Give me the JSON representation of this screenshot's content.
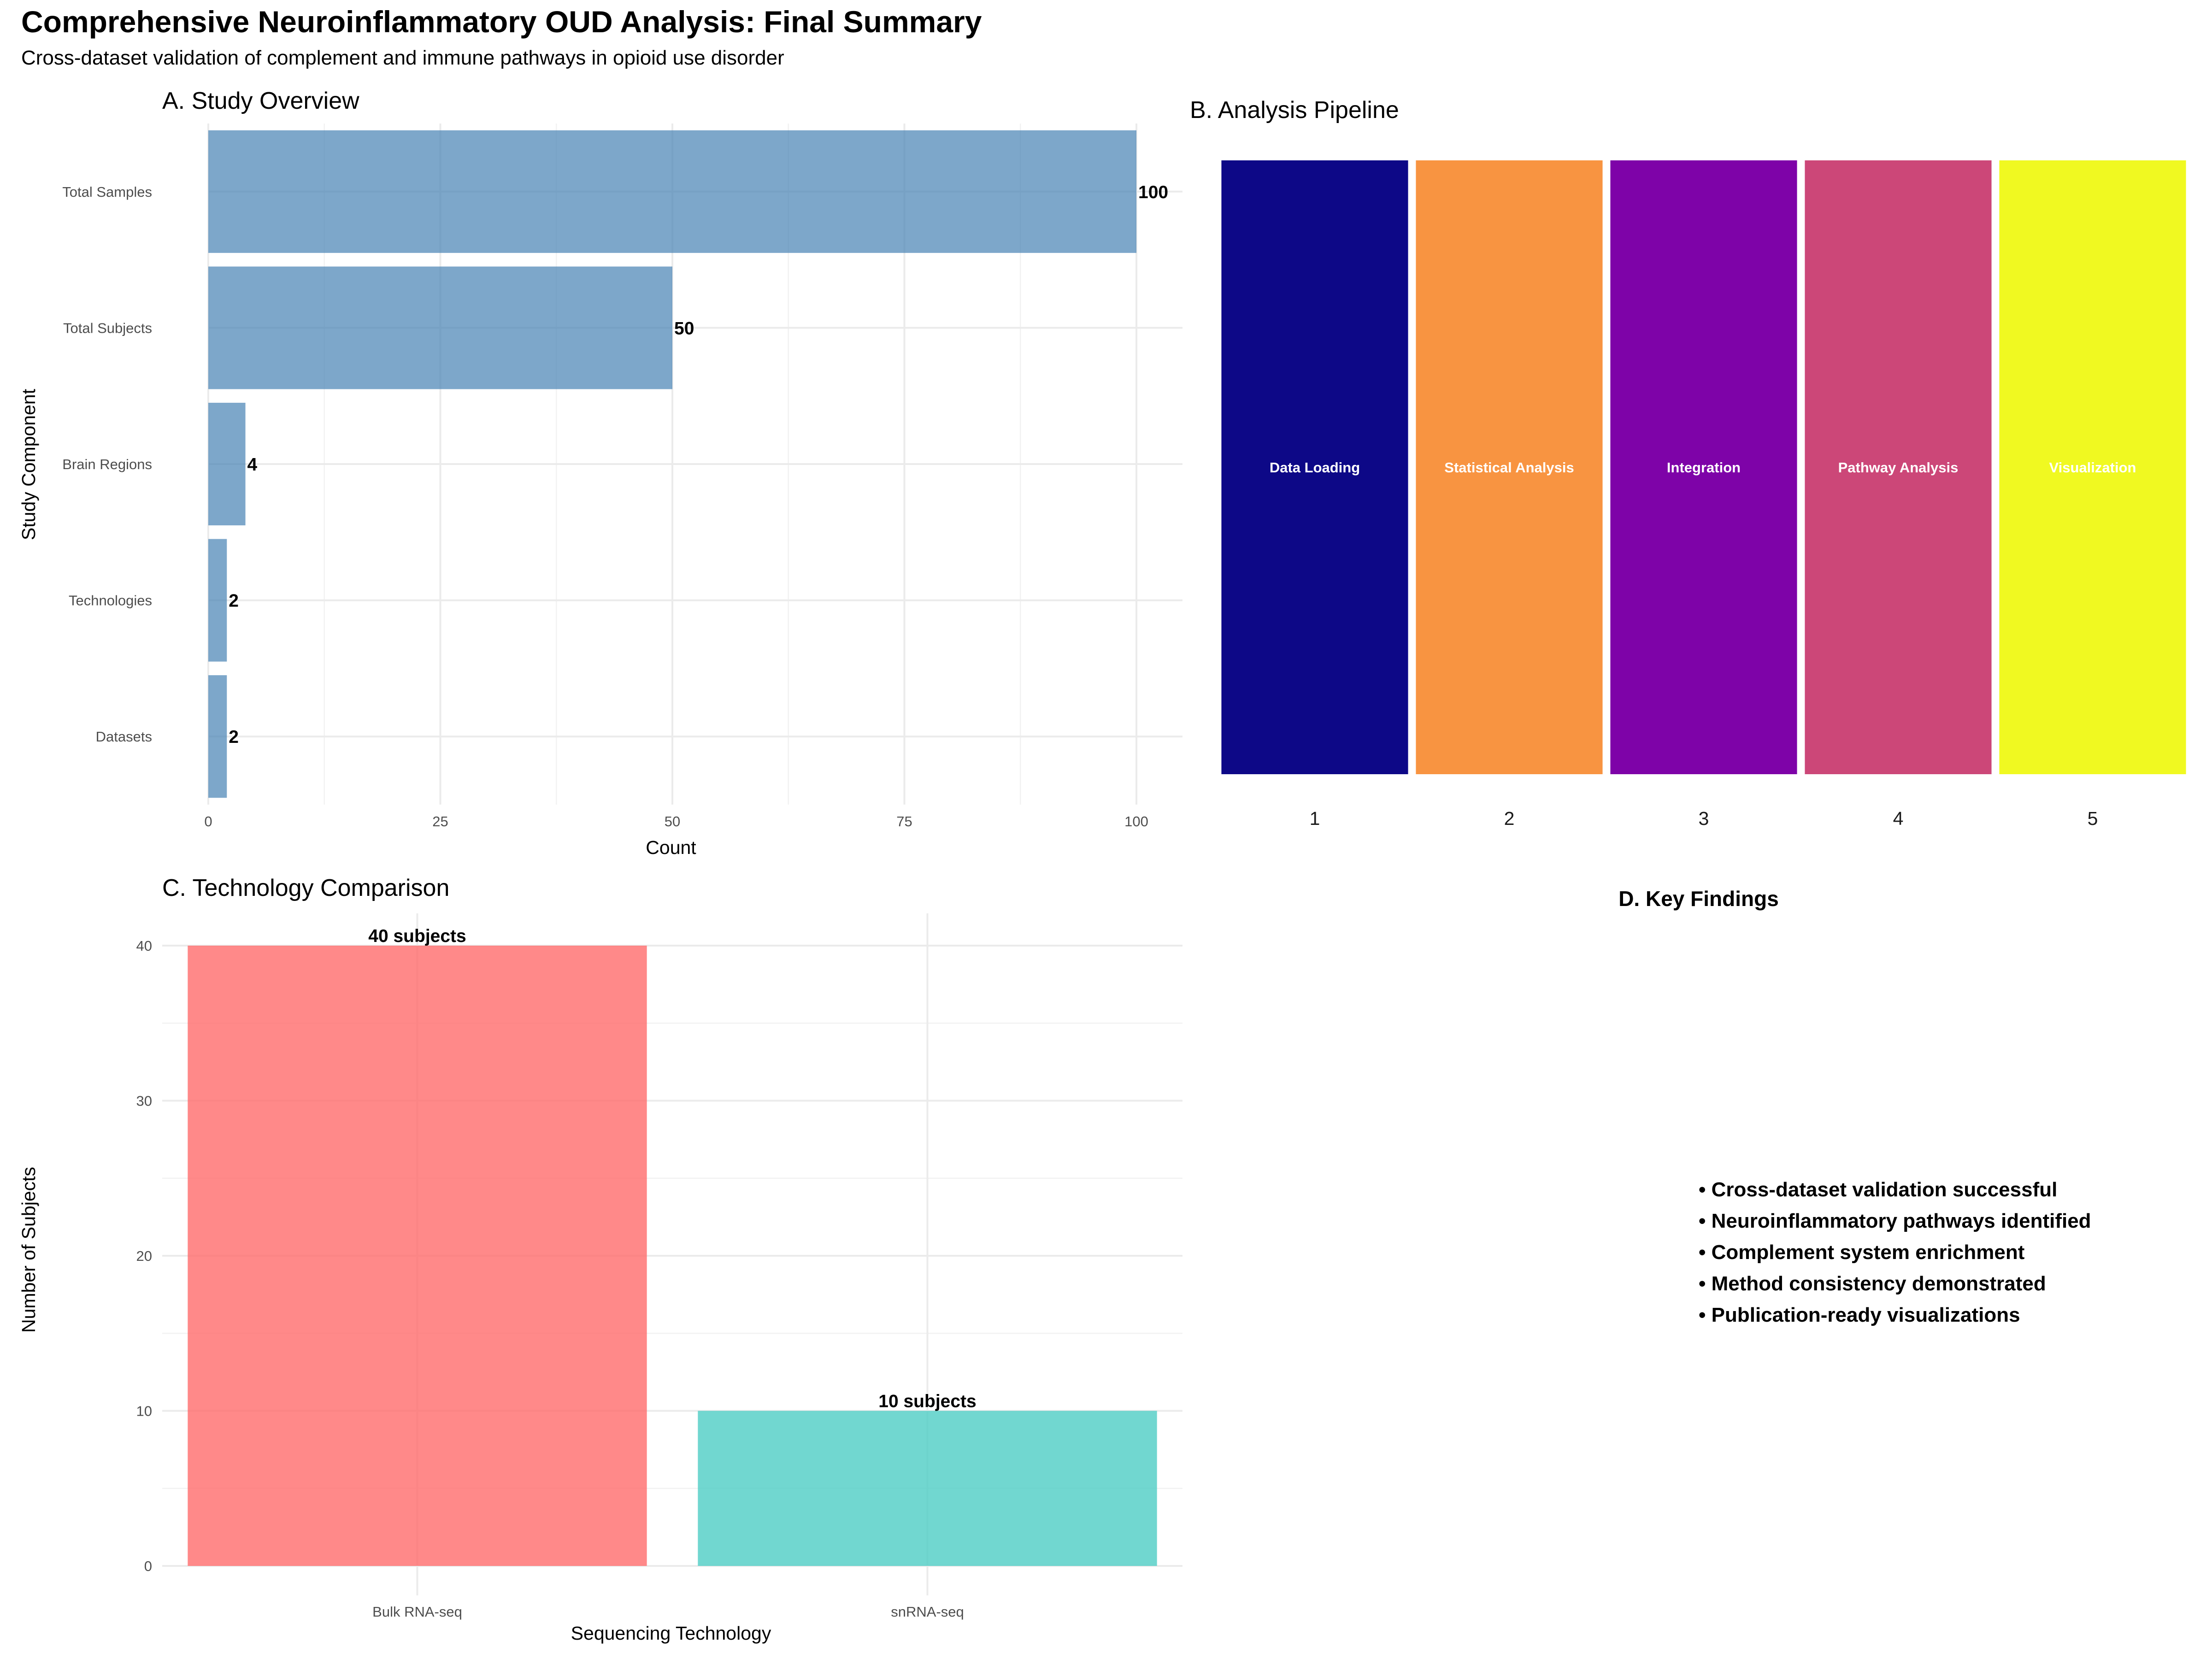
{
  "title": "Comprehensive Neuroinflammatory OUD Analysis: Final Summary",
  "subtitle": "Cross-dataset validation of complement and immune pathways in opioid use disorder",
  "chart_data": [
    {
      "panel": "A",
      "type": "bar",
      "orientation": "horizontal",
      "title": "A. Study Overview",
      "xlabel": "Count",
      "ylabel": "Study Component",
      "categories": [
        "Total Samples",
        "Total Subjects",
        "Brain Regions",
        "Technologies",
        "Datasets"
      ],
      "values": [
        100,
        50,
        4,
        2,
        2
      ],
      "data_labels": [
        "100",
        "50",
        "4",
        "2",
        "2"
      ],
      "xlim": [
        0,
        105
      ],
      "xticks": [
        0,
        25,
        50,
        75,
        100
      ],
      "xtick_labels": [
        "0",
        "25",
        "50",
        "75",
        "100"
      ],
      "grid": true,
      "color": "#4682B4"
    },
    {
      "panel": "B",
      "type": "bar",
      "title": "B. Analysis Pipeline",
      "xlabel": "",
      "ylabel": "",
      "categories": [
        "1",
        "2",
        "3",
        "4",
        "5"
      ],
      "stage_labels": [
        "Data Loading",
        "Statistical Analysis",
        "Integration",
        "Pathway Analysis",
        "Visualization"
      ],
      "values": [
        1,
        1,
        1,
        1,
        1
      ],
      "colors": [
        "#0D0887",
        "#F89441",
        "#7E03A8",
        "#CC4778",
        "#F0F921"
      ],
      "grid": false
    },
    {
      "panel": "C",
      "type": "bar",
      "title": "C. Technology Comparison",
      "xlabel": "Sequencing Technology",
      "ylabel": "Number of Subjects",
      "categories": [
        "Bulk RNA-seq",
        "snRNA-seq"
      ],
      "values": [
        40,
        10
      ],
      "data_labels": [
        "40 subjects",
        "10 subjects"
      ],
      "ylim": [
        0,
        42
      ],
      "yticks": [
        0,
        10,
        20,
        30,
        40
      ],
      "ytick_labels": [
        "0",
        "10",
        "20",
        "30",
        "40"
      ],
      "colors": [
        "#FF6B6B",
        "#4ECDC4"
      ],
      "grid": true
    }
  ],
  "findings": {
    "title": "D. Key Findings",
    "items": [
      "• Cross-dataset validation successful",
      "• Neuroinflammatory pathways identified",
      "• Complement system enrichment",
      "• Method consistency demonstrated",
      "• Publication-ready visualizations"
    ]
  }
}
